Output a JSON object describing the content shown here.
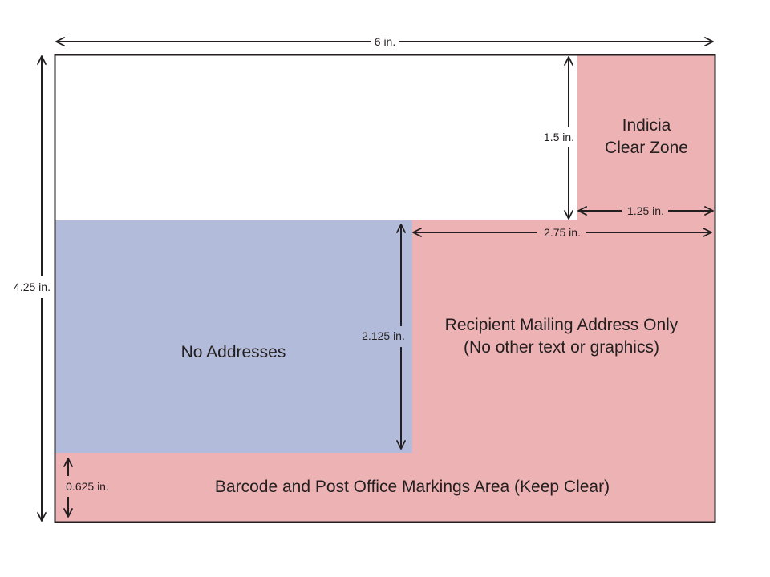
{
  "colors": {
    "clear_zone": "#edb2b4",
    "no_address_zone": "#b2bbd9",
    "outline": "#231f20",
    "background": "#ffffff"
  },
  "dimensions": {
    "width": "6 in.",
    "height": "4.25 in.",
    "indicia_height": "1.5 in.",
    "indicia_width": "1.25 in.",
    "address_width": "2.75 in.",
    "address_height": "2.125 in.",
    "barcode_height": "0.625 in."
  },
  "zones": {
    "indicia_line1": "Indicia",
    "indicia_line2": "Clear Zone",
    "no_addresses": "No Addresses",
    "recipient_line1": "Recipient Mailing Address Only",
    "recipient_line2": "(No other text or graphics)",
    "barcode": "Barcode and Post Office Markings Area (Keep Clear)"
  }
}
